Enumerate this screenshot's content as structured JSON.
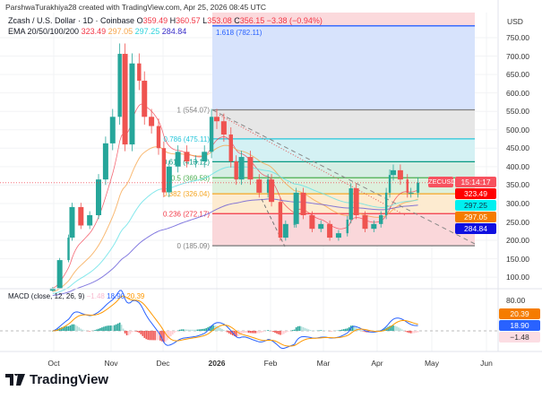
{
  "header": {
    "credit": "ParshwaTurakhiya28 created with TradingView.com, Apr 25, 2026 08:45 UTC",
    "symbol": "Zcash / U.S. Dollar · 1D · Coinbase",
    "o_label": "O",
    "o": "359.49",
    "h_label": "H",
    "h": "360.57",
    "l_label": "L",
    "l": "353.08",
    "c_label": "C",
    "c": "356.15",
    "change": "−3.38 (−0.94%)",
    "ema_label": "EMA 20/50/100/200",
    "ema20": "323.49",
    "ema50": "297.05",
    "ema100": "297.25",
    "ema200": "284.84"
  },
  "colors": {
    "up": "#26a69a",
    "down": "#ef5350",
    "ema20": "#f23645",
    "ema50": "#f7a346",
    "ema100": "#5ce0e6",
    "ema200": "#5b4fd6",
    "macd": "#2962ff",
    "signal": "#ff9800"
  },
  "price_axis": {
    "unit": "USD",
    "ticks": [
      "750.00",
      "700.00",
      "650.00",
      "600.00",
      "550.00",
      "500.00",
      "450.00",
      "400.00",
      "350.00",
      "300.00",
      "250.00",
      "200.00",
      "150.00",
      "100.00"
    ],
    "symbol_tag": "ZECUSD",
    "countdown": "15:14:17",
    "badges": [
      "323.49",
      "297.25",
      "297.05",
      "284.84"
    ]
  },
  "macd": {
    "title": "MACD (close, 12, 26, 9)",
    "hist": "−1.48",
    "macd": "18.90",
    "signal": "20.39",
    "tick": "80.00",
    "badges": [
      "20.39",
      "18.90",
      "−1.48"
    ]
  },
  "time_axis": [
    "Oct",
    "Nov",
    "Dec",
    "2026",
    "Feb",
    "Mar",
    "Apr",
    "May",
    "Jun"
  ],
  "footer": {
    "brand": "TradingView"
  },
  "chart_data": {
    "type": "candlestick",
    "title": "Zcash / U.S. Dollar · 1D · Coinbase",
    "ylabel": "USD",
    "ylim": [
      80,
      800
    ],
    "closes": [
      [
        "2025-09-30",
        70
      ],
      [
        "2025-10-04",
        146
      ],
      [
        "2025-10-09",
        207
      ],
      [
        "2025-10-11",
        290
      ],
      [
        "2025-10-16",
        240
      ],
      [
        "2025-10-21",
        268
      ],
      [
        "2025-10-26",
        365
      ],
      [
        "2025-10-30",
        463
      ],
      [
        "2025-11-03",
        535
      ],
      [
        "2025-11-07",
        706
      ],
      [
        "2025-11-10",
        460
      ],
      [
        "2025-11-14",
        680
      ],
      [
        "2025-11-18",
        633
      ],
      [
        "2025-11-21",
        535
      ],
      [
        "2025-11-25",
        510
      ],
      [
        "2025-11-29",
        450
      ],
      [
        "2025-12-02",
        330
      ],
      [
        "2025-12-05",
        400
      ],
      [
        "2025-12-10",
        440
      ],
      [
        "2025-12-15",
        414
      ],
      [
        "2025-12-20",
        414
      ],
      [
        "2025-12-25",
        440
      ],
      [
        "2025-12-29",
        535
      ],
      [
        "2026-01-01",
        523
      ],
      [
        "2026-01-05",
        487
      ],
      [
        "2026-01-09",
        414
      ],
      [
        "2026-01-12",
        365
      ],
      [
        "2026-01-15",
        426
      ],
      [
        "2026-01-20",
        365
      ],
      [
        "2026-01-25",
        329
      ],
      [
        "2026-01-30",
        365
      ],
      [
        "2026-02-01",
        304
      ],
      [
        "2026-02-06",
        207
      ],
      [
        "2026-02-09",
        244
      ],
      [
        "2026-02-14",
        244
      ],
      [
        "2026-02-15",
        329
      ],
      [
        "2026-02-19",
        268
      ],
      [
        "2026-02-24",
        231
      ],
      [
        "2026-03-01",
        244
      ],
      [
        "2026-03-06",
        207
      ],
      [
        "2026-03-11",
        219
      ],
      [
        "2026-03-16",
        256
      ],
      [
        "2026-03-18",
        341
      ],
      [
        "2026-03-21",
        268
      ],
      [
        "2026-03-26",
        231
      ],
      [
        "2026-03-31",
        244
      ],
      [
        "2026-04-04",
        268
      ],
      [
        "2026-04-07",
        329
      ],
      [
        "2026-04-09",
        377
      ],
      [
        "2026-04-11",
        390
      ],
      [
        "2026-04-15",
        365
      ],
      [
        "2026-04-19",
        329
      ],
      [
        "2026-04-21",
        329
      ],
      [
        "2026-04-25",
        356.15
      ]
    ],
    "fib_levels": [
      {
        "label": "1.618 (782.11)",
        "value": 782.11,
        "color": "#2962ff",
        "fill": "#d7e3fc"
      },
      {
        "label": "1 (554.07)",
        "value": 554.07,
        "color": "#808080",
        "fill": "#e6e6e6"
      },
      {
        "label": "0.786 (475.11)",
        "value": 475.11,
        "color": "#26c6da",
        "fill": "#d4f1f4"
      },
      {
        "label": "0.618 (413.12)",
        "value": 413.12,
        "color": "#089981",
        "fill": "#d6eee4"
      },
      {
        "label": "0.5 (369.58)",
        "value": 369.58,
        "color": "#4caf50",
        "fill": "#ddf0dc"
      },
      {
        "label": "0.382 (326.04)",
        "value": 326.04,
        "color": "#f5a623",
        "fill": "#fdebd0"
      },
      {
        "label": "0.236 (272.17)",
        "value": 272.17,
        "color": "#f23645",
        "fill": "#fad7da"
      },
      {
        "label": "0 (185.09)",
        "value": 185.09,
        "color": "#808080",
        "fill": ""
      }
    ]
  }
}
